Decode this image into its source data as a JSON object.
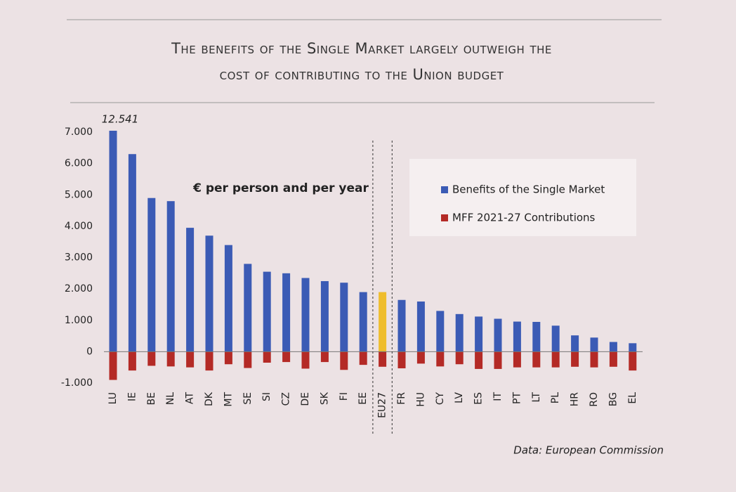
{
  "chart_data": {
    "type": "bar",
    "title": [
      "The benefits of the Single Market largely outweigh the",
      "cost of contributing to the Union budget"
    ],
    "annotations": [
      "€ per person and per year"
    ],
    "source": "Data: European Commission",
    "categories": [
      "LU",
      "IE",
      "BE",
      "NL",
      "AT",
      "DK",
      "MT",
      "SE",
      "SI",
      "CZ",
      "DE",
      "SK",
      "FI",
      "EE",
      "EU27",
      "FR",
      "HU",
      "CY",
      "LV",
      "ES",
      "IT",
      "PT",
      "LT",
      "PL",
      "HR",
      "RO",
      "BG",
      "EL"
    ],
    "series": [
      {
        "name": "Benefits of the Single Market",
        "color": "#3b5bb5",
        "colors": [
          "#3b5bb5",
          "#3b5bb5",
          "#3b5bb5",
          "#3b5bb5",
          "#3b5bb5",
          "#3b5bb5",
          "#3b5bb5",
          "#3b5bb5",
          "#3b5bb5",
          "#3b5bb5",
          "#3b5bb5",
          "#3b5bb5",
          "#3b5bb5",
          "#3b5bb5",
          "#efbd2c",
          "#3b5bb5",
          "#3b5bb5",
          "#3b5bb5",
          "#3b5bb5",
          "#3b5bb5",
          "#3b5bb5",
          "#3b5bb5",
          "#3b5bb5",
          "#3b5bb5",
          "#3b5bb5",
          "#3b5bb5",
          "#3b5bb5",
          "#3b5bb5"
        ],
        "values": [
          12541,
          6300,
          4900,
          4800,
          3950,
          3700,
          3400,
          2800,
          2550,
          2500,
          2350,
          2250,
          2200,
          1900,
          1900,
          1650,
          1600,
          1300,
          1200,
          1120,
          1050,
          960,
          950,
          830,
          520,
          450,
          310,
          270
        ],
        "value_labels": [
          "12.541",
          null,
          null,
          null,
          null,
          null,
          null,
          null,
          null,
          null,
          null,
          null,
          null,
          null,
          null,
          null,
          null,
          null,
          null,
          null,
          null,
          null,
          null,
          null,
          null,
          null,
          null,
          null
        ]
      },
      {
        "name": "MFF 2021-27 Contributions",
        "color": "#b42a26",
        "values": [
          -900,
          -600,
          -450,
          -470,
          -500,
          -600,
          -400,
          -520,
          -350,
          -330,
          -540,
          -330,
          -580,
          -420,
          -480,
          -530,
          -380,
          -470,
          -400,
          -550,
          -550,
          -500,
          -500,
          -500,
          -480,
          -500,
          -480,
          -600
        ]
      }
    ],
    "ylim": [
      -1000,
      7000
    ],
    "yticks": [
      {
        "value": 7000,
        "label": "7.000"
      },
      {
        "value": 6000,
        "label": "6.000"
      },
      {
        "value": 5000,
        "label": "5.000"
      },
      {
        "value": 4000,
        "label": "4.000"
      },
      {
        "value": 3000,
        "label": "3.000"
      },
      {
        "value": 2000,
        "label": "2.000"
      },
      {
        "value": 1000,
        "label": "1.000"
      },
      0,
      {
        "value": -1000,
        "label": "-1.000"
      }
    ],
    "grid": false,
    "legend": "upper right"
  }
}
